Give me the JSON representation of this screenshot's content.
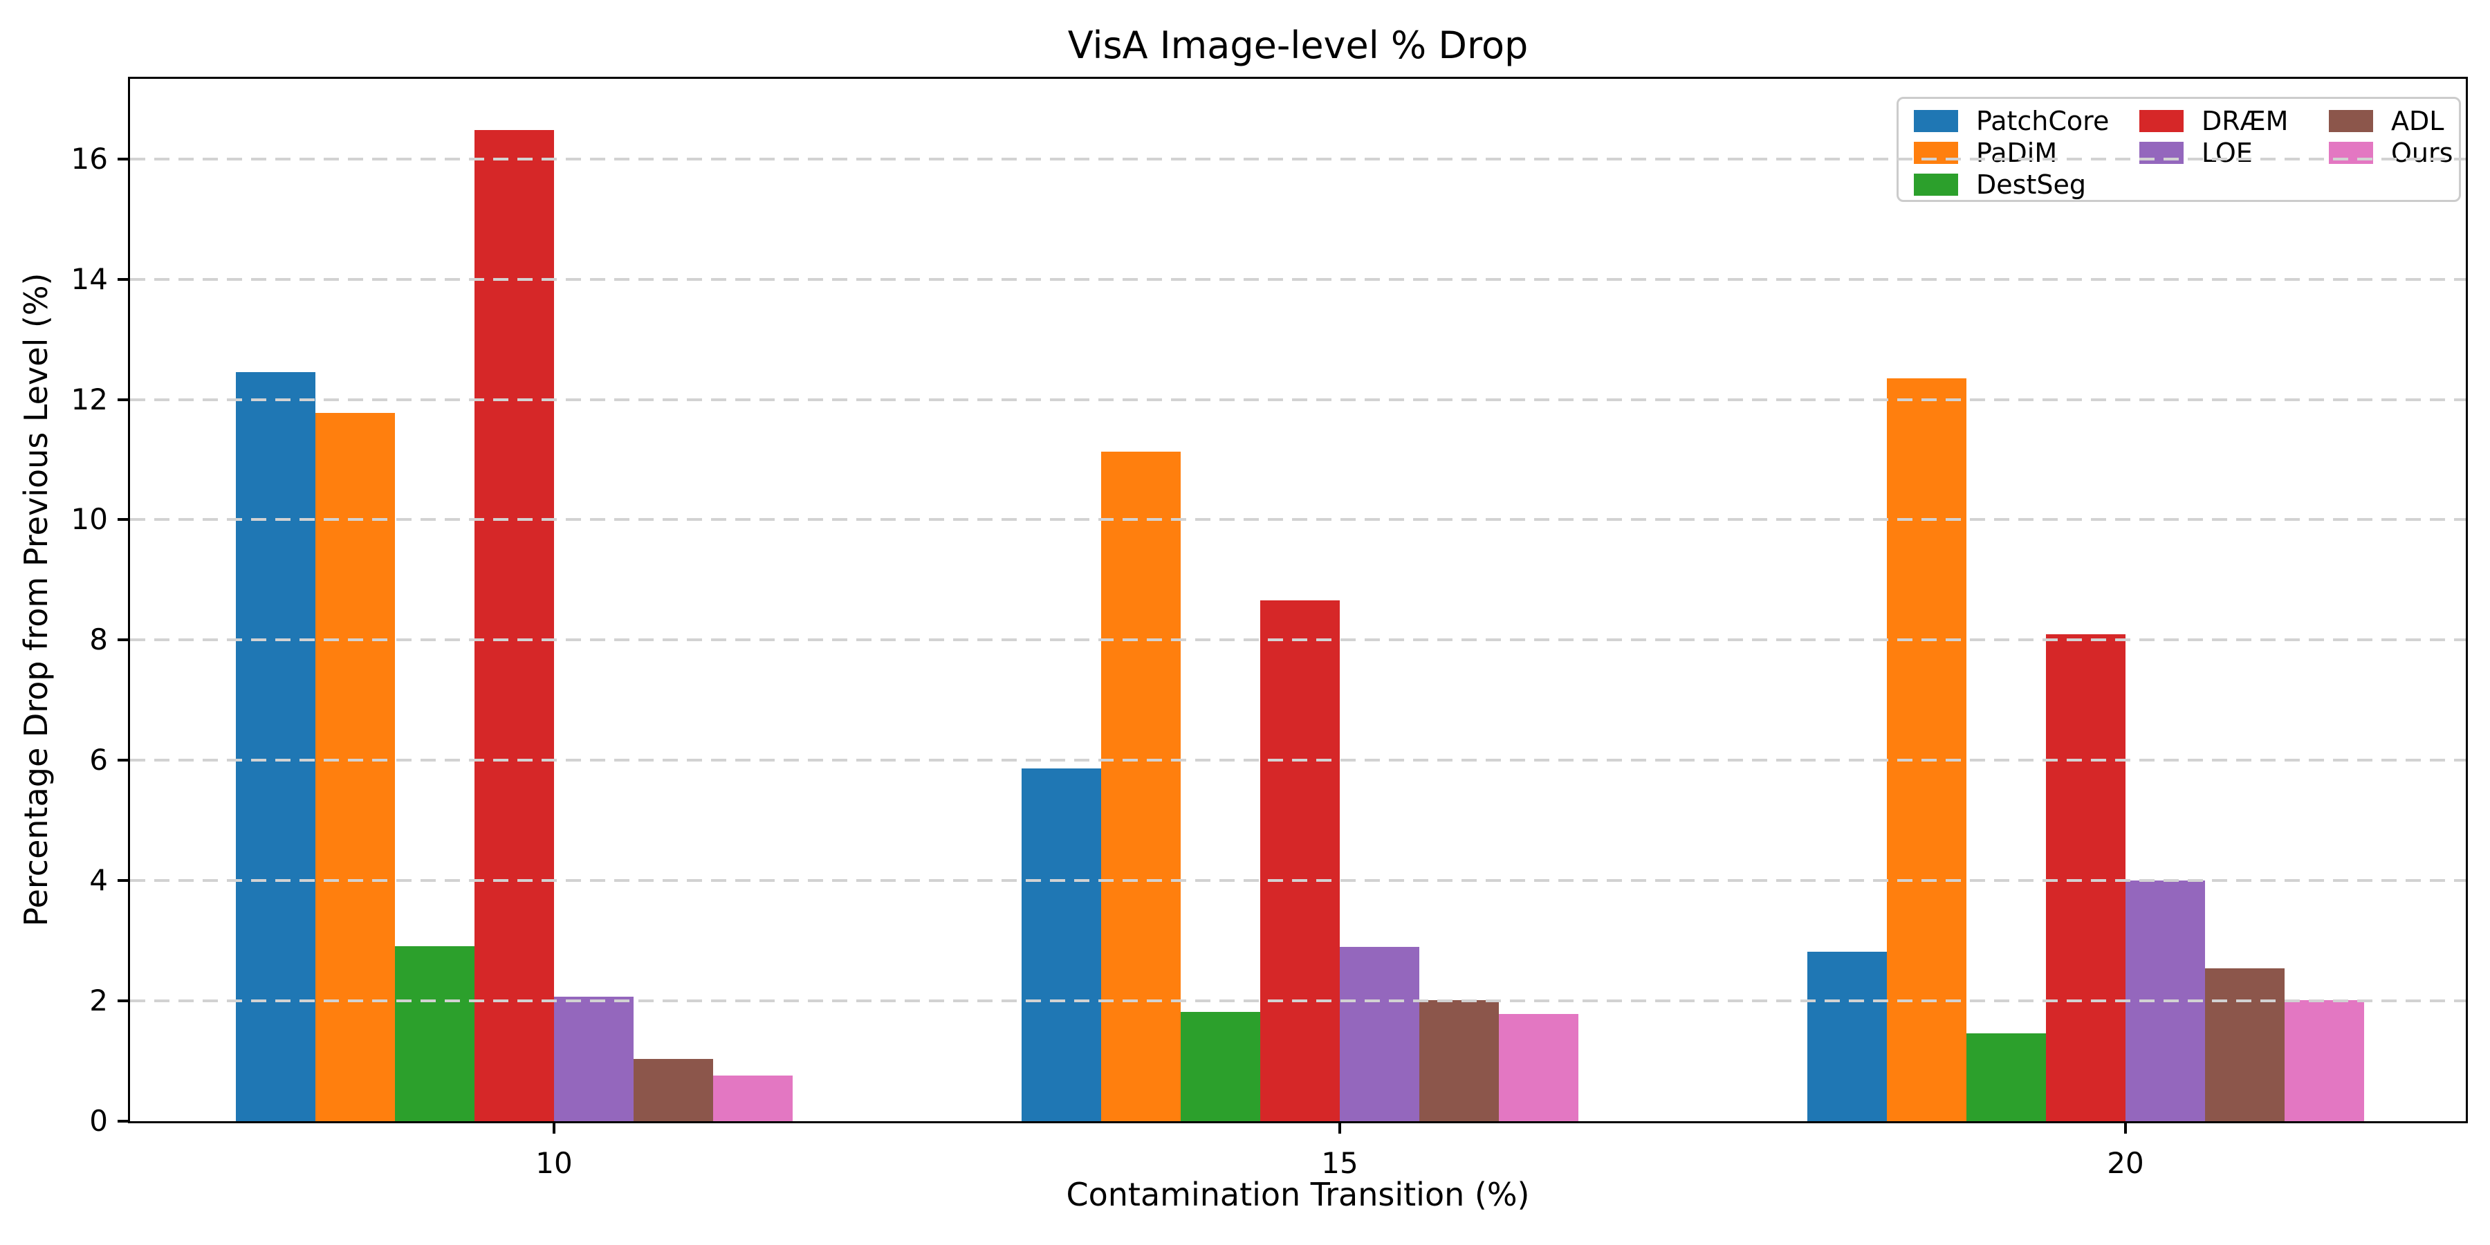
{
  "chart_data": {
    "type": "bar",
    "title": "VisA Image-level % Drop",
    "xlabel": "Contamination Transition (%)",
    "ylabel": "Percentage Drop from Previous Level (%)",
    "categories": [
      "10",
      "15",
      "20"
    ],
    "series": [
      {
        "name": "PatchCore",
        "color": "#1f77b4",
        "values": [
          12.45,
          5.87,
          2.82
        ]
      },
      {
        "name": "PaDiM",
        "color": "#ff7f0e",
        "values": [
          11.78,
          11.13,
          12.35
        ]
      },
      {
        "name": "DestSeg",
        "color": "#2ca02c",
        "values": [
          2.91,
          1.82,
          1.46
        ]
      },
      {
        "name": "DRÆM",
        "color": "#d62728",
        "values": [
          16.48,
          8.66,
          8.1
        ]
      },
      {
        "name": "LOE",
        "color": "#9467bd",
        "values": [
          2.07,
          2.9,
          4.0
        ]
      },
      {
        "name": "ADL",
        "color": "#8c564b",
        "values": [
          1.04,
          2.01,
          2.54
        ]
      },
      {
        "name": "Ours",
        "color": "#e377c2",
        "values": [
          0.76,
          1.78,
          2.01
        ]
      }
    ],
    "ylim": [
      0,
      17.33
    ],
    "yticks": [
      0,
      2,
      4,
      6,
      8,
      10,
      12,
      14,
      16
    ],
    "grid": "horizontal dashed, light gray, drawn above bars and legend",
    "grid_color": "#d2d2d2",
    "spine_color": "#000000",
    "background": "#ffffff",
    "legend_position": "upper right",
    "legend_columns": [
      [
        "PatchCore",
        "PaDiM",
        "DestSeg"
      ],
      [
        "DRÆM",
        "LOE"
      ],
      [
        "ADL",
        "Ours"
      ]
    ]
  }
}
